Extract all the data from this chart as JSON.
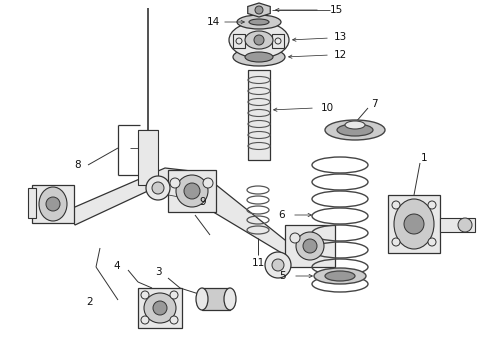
{
  "bg_color": "#ffffff",
  "fig_width": 4.89,
  "fig_height": 3.6,
  "dpi": 100,
  "line_color": "#333333",
  "label_color": "#111111",
  "fill_light": "#e8e8e8",
  "fill_mid": "#cccccc",
  "fill_dark": "#999999"
}
